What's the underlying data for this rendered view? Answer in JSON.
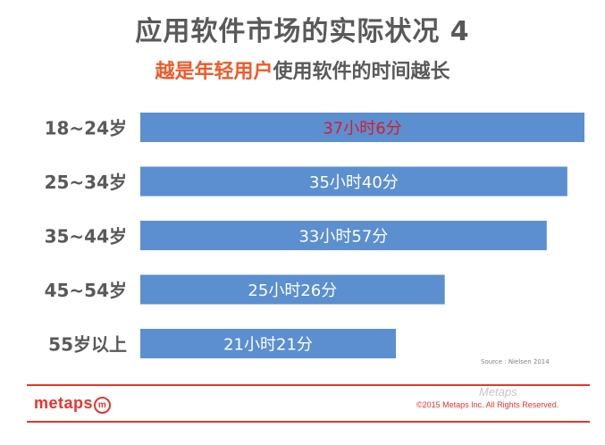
{
  "slide": {
    "title": "应用软件市场的实际状况 4",
    "subtitle_accent": "越是年轻用户",
    "subtitle_rest": "使用软件的时间越长",
    "source": "Source : Nielsen 2014",
    "logo_text": "metaps",
    "logo_mark": "m",
    "copyright": "©2015 Metaps Inc. All Rights Reserved.",
    "watermark": "Metaps"
  },
  "colors": {
    "bar": "#5b8fd0",
    "bar_label": "#ffffff",
    "highlight_label": "#d81b2c",
    "accent": "#f05a28",
    "brand": "#e8332e",
    "axis_label": "#595959"
  },
  "chart_data": {
    "type": "bar",
    "orientation": "horizontal",
    "categories": [
      "18~24岁",
      "25~34岁",
      "35~44岁",
      "45~54岁",
      "55岁以上"
    ],
    "values": [
      37.1,
      35.67,
      33.95,
      25.43,
      21.35
    ],
    "value_unit": "hours",
    "data_labels": [
      "37小时6分",
      "35小时40分",
      "33小时57分",
      "25小时26分",
      "21小时21分"
    ],
    "highlight_index": 0,
    "xlim": [
      0,
      37.1
    ],
    "grid": false,
    "title": "",
    "xlabel": "",
    "ylabel": ""
  }
}
